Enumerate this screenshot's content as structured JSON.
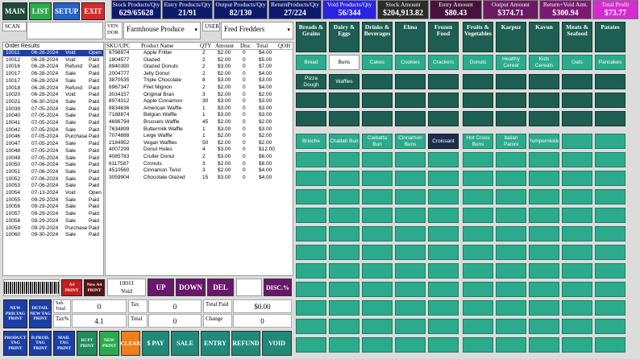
{
  "nav": {
    "main": "MAIN",
    "list": "LIST",
    "setup": "SETUP",
    "exit": "EXIT"
  },
  "stats": [
    {
      "label": "Stock Products/Qty",
      "value": "629/65628",
      "color": "#0d1a6b"
    },
    {
      "label": "Entry Products/Qty",
      "value": "21/91",
      "color": "#0d1a6b"
    },
    {
      "label": "Output Products/Qty",
      "value": "82/130",
      "color": "#0d1a6b"
    },
    {
      "label": "ReturnProducts/Qty",
      "value": "27/224",
      "color": "#0d1a6b"
    },
    {
      "label": "Void Products/Qty",
      "value": "56/344",
      "color": "#2a24e0"
    },
    {
      "label": "Stock Amount",
      "value": "$204,913.82",
      "color": "#2b2b2b"
    },
    {
      "label": "Entry Amount",
      "value": "$80.43",
      "color": "#46133d"
    },
    {
      "label": "Output Amount",
      "value": "$374.71",
      "color": "#6a1a62"
    },
    {
      "label": "Return+Void Amt.",
      "value": "$300.94",
      "color": "#7a1a72"
    },
    {
      "label": "Total Profit",
      "value": "$73.77",
      "color": "#d52bd0"
    }
  ],
  "scan": {
    "label": "SCAN",
    "value": ""
  },
  "vendor": {
    "label": "VEN DOR",
    "value": "Farmhouse Produce"
  },
  "user": {
    "label": "USER",
    "value": "Fred Fredders"
  },
  "orders": {
    "title": "Order Results",
    "rows": [
      [
        "10011",
        "06-28-2024",
        "Void",
        "Open"
      ],
      [
        "10012",
        "06-28-2024",
        "Void",
        "Paid"
      ],
      [
        "10016",
        "06-28-2024",
        "Refund",
        "Paid"
      ],
      [
        "10017",
        "06-28-2024",
        "Sale",
        "Paid"
      ],
      [
        "10017",
        "06-28-2024",
        "Sale",
        "Paid"
      ],
      [
        "10018",
        "06-28-2024",
        "Refund",
        "Paid"
      ],
      [
        "10020",
        "06-28-2024",
        "Void",
        "Paid"
      ],
      [
        "10021",
        "06-30-2024",
        "Sale",
        "Paid"
      ],
      [
        "10039",
        "07-05-2024",
        "Sale",
        "Paid"
      ],
      [
        "10040",
        "07-05-2024",
        "Sale",
        "Paid"
      ],
      [
        "10041",
        "07-05-2024",
        "Sale",
        "Paid"
      ],
      [
        "10042",
        "07-05-2024",
        "Sale",
        "Paid"
      ],
      [
        "10046",
        "07-05-2024",
        "Purchase",
        "Paid"
      ],
      [
        "10047",
        "07-05-2024",
        "Sale",
        "Paid"
      ],
      [
        "10048",
        "07-05-2024",
        "Sale",
        "Paid"
      ],
      [
        "10049",
        "07-05-2024",
        "Sale",
        "Paid"
      ],
      [
        "10050",
        "07-06-2024",
        "Sale",
        "Paid"
      ],
      [
        "10051",
        "07-06-2024",
        "Sale",
        "Paid"
      ],
      [
        "10052",
        "07-06-2024",
        "Sale",
        "Paid"
      ],
      [
        "10053",
        "07-06-2024",
        "Sale",
        "Paid"
      ],
      [
        "10054",
        "07-13-2024",
        "Void",
        "Open"
      ],
      [
        "10055",
        "09-29-2024",
        "Sale",
        "Paid"
      ],
      [
        "10056",
        "09-29-2024",
        "Sale",
        "Paid"
      ],
      [
        "10057",
        "09-29-2024",
        "Sale",
        "Paid"
      ],
      [
        "10058",
        "09-29-2024",
        "Sale",
        "Paid"
      ],
      [
        "10059",
        "09-29-2024",
        "Purchase",
        "Paid"
      ],
      [
        "10060",
        "09-30-2024",
        "Sale",
        "Paid"
      ]
    ]
  },
  "products": {
    "headers": [
      "SKU/UPC",
      "Product Name",
      "QTY",
      "Amount",
      "Disc",
      "Total",
      "QOH"
    ],
    "rows": [
      [
        "6798974",
        "Apple Fritter",
        "2",
        "$2.00",
        "0",
        "$4.00"
      ],
      [
        "1804577",
        "Glazed",
        "2",
        "$2.00",
        "0",
        "$5.00"
      ],
      [
        "8940390",
        "Glazed Donuts",
        "2",
        "$3.00",
        "0",
        "$7.00"
      ],
      [
        "2004777",
        "Jelly Donut",
        "2",
        "$2.00",
        "0",
        "$4.00"
      ],
      [
        "3870535",
        "Triple Chocolate",
        "8",
        "$3.00",
        "0",
        "$3.00"
      ],
      [
        "6967347",
        "Filet Mignon",
        "2",
        "$2.00",
        "0",
        "$4.00"
      ],
      [
        "3034157",
        "Original Bran",
        "3",
        "$2.00",
        "0",
        "$2.00"
      ],
      [
        "8974312",
        "Apple Cinnamon",
        "30",
        "$3.00",
        "0",
        "$3.00"
      ],
      [
        "8834636",
        "American Waffle",
        "1",
        "$3.00",
        "0",
        "$3.00"
      ],
      [
        "7188874",
        "Belgian Waffle",
        "1",
        "$3.00",
        "0",
        "$3.00"
      ],
      [
        "4696794",
        "Brussels Waffle",
        "45",
        "$2.00",
        "0",
        "$2.00"
      ],
      [
        "7634899",
        "Buttermilk Waffle",
        "1",
        "$3.00",
        "0",
        "$3.00"
      ],
      [
        "7074888",
        "Leige Waffle",
        "1",
        "$2.00",
        "0",
        "$2.00"
      ],
      [
        "2184952",
        "Vegan Waffles",
        "50",
        "$2.00",
        "0",
        "$2.00"
      ],
      [
        "4007299",
        "Donut Holes",
        "4",
        "$3.00",
        "0",
        "$12.00"
      ],
      [
        "4085783",
        "Cruller Donut",
        "2",
        "$3.00",
        "0",
        "$6.00"
      ],
      [
        "6117587",
        "Cronuts",
        "3",
        "$2.00",
        "0",
        "$8.00"
      ],
      [
        "4510560",
        "Cinnamon Twist",
        "3",
        "$2.00",
        "0",
        "$4.00"
      ],
      [
        "3059904",
        "Chocolate Glazed",
        "15",
        "$3.00",
        "0",
        "$4.00"
      ]
    ]
  },
  "categories": [
    "Breads & Grains",
    "Dairy & Eggs",
    "Drinks & Beverages",
    "Elma",
    "Frozen Food",
    "Fruits & Vegetables",
    "Karpuz",
    "Kavun",
    "Meats & Seafood",
    "Patates"
  ],
  "top_products": [
    [
      "Bread",
      "Buns",
      "Cakes",
      "Cookies",
      "Crackers",
      "Donuts",
      "Healthy Cereal",
      "Kids Cereals",
      "Oats",
      "Pancakes"
    ],
    [
      "Pizza Dough",
      "Waffles",
      "",
      "",
      "",
      "",
      "",
      "",
      "",
      ""
    ]
  ],
  "bottom_products": [
    "Brioche",
    "Challah Bun",
    "Ciabatta Bun",
    "Cinnamon Buns",
    "Croissant",
    "Hot Cross Buns",
    "Italian Panini",
    "Pumpernickle",
    "",
    ""
  ],
  "controls": {
    "a4_print": "A4 PRINT",
    "new_a4_print": "New A4 PRINT",
    "order_no": "10011",
    "order_status": "Void",
    "up": "UP",
    "down": "DOWN",
    "del": "DEL",
    "disc": "DISC.%"
  },
  "summary": {
    "subtotal_label": "Sub. Total",
    "subtotal": "0",
    "tax_pct_label": "Tax%",
    "tax_pct": "4.1",
    "tax_label": "Tax",
    "tax": "0",
    "total_label": "Total",
    "total": "0",
    "total_paid_label": "Total Paid",
    "total_paid": "$0.00",
    "change_label": "Change",
    "change": "0"
  },
  "mini_buttons": {
    "new_prd_tag": "NEW PRD.TAG PRINT",
    "detail_new_tag": "DETAIL NEW TAG PRINT",
    "product_tag": "PRODUCT TAG PRINT",
    "d_prod_tag": "D.PROD. TAG PRINT",
    "mail_tag": "MAIL TAG PRINT",
    "rcpt_print": "RCPT PRINT",
    "new_print": "NEW PRINT"
  },
  "actions": {
    "clear": "CLEAR",
    "pay": "$ PAY",
    "sale": "SALE",
    "entry": "ENTRY",
    "refund": "REFUND",
    "void": "VOID"
  }
}
